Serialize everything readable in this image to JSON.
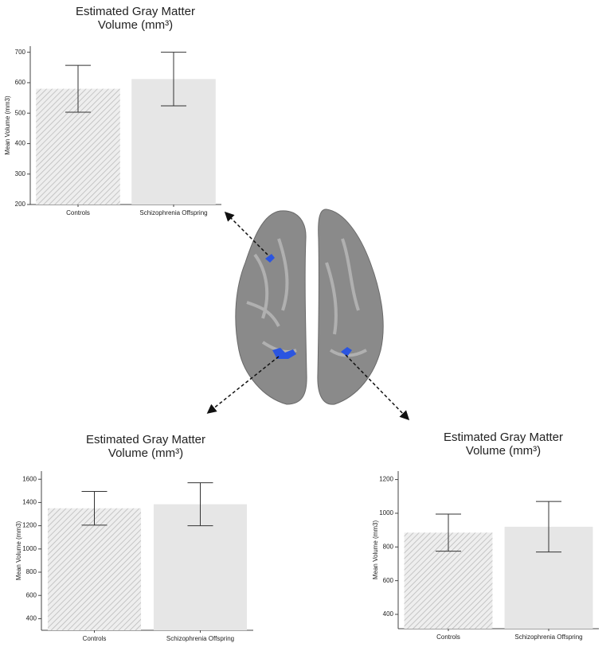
{
  "chart_data": [
    {
      "type": "bar",
      "title": [
        "Estimated Gray Matter",
        "Volume (mm³)"
      ],
      "y_label": "Mean Volume (mm3)",
      "categories": [
        "Controls",
        "Schizophrenia Offspring"
      ],
      "values": [
        580,
        612
      ],
      "errors": [
        77,
        88
      ],
      "colors": [
        "#d4d4d4",
        "#e6e6e6"
      ],
      "hatched": [
        true,
        false
      ],
      "ylim": [
        200,
        720
      ],
      "yticks": [
        200,
        300,
        400,
        500,
        600,
        700
      ]
    },
    {
      "type": "bar",
      "title": [
        "Estimated Gray Matter",
        "Volume (mm³)"
      ],
      "y_label": "Mean Volume (mm3)",
      "categories": [
        "Controls",
        "Schizophrenia Offspring"
      ],
      "values": [
        1350,
        1385
      ],
      "errors": [
        145,
        185
      ],
      "colors": [
        "#d4d4d4",
        "#e6e6e6"
      ],
      "hatched": [
        true,
        false
      ],
      "ylim": [
        300,
        1670
      ],
      "yticks": [
        400,
        600,
        800,
        1000,
        1200,
        1400,
        1600
      ]
    },
    {
      "type": "bar",
      "title": [
        "Estimated Gray Matter",
        "Volume (mm³)"
      ],
      "y_label": "Mean Volume (mm3)",
      "categories": [
        "Controls",
        "Schizophrenia Offspring"
      ],
      "values": [
        885,
        920
      ],
      "errors": [
        110,
        150
      ],
      "colors": [
        "#d4d4d4",
        "#e6e6e6"
      ],
      "hatched": [
        true,
        false
      ],
      "ylim": [
        315,
        1250
      ],
      "yticks": [
        400,
        600,
        800,
        1000,
        1200
      ]
    }
  ]
}
